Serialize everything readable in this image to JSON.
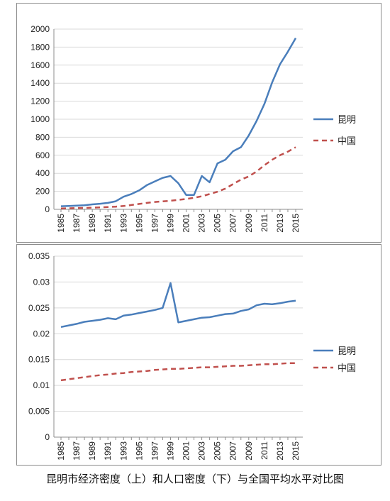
{
  "chart_data": [
    {
      "type": "line",
      "x": [
        "1985",
        "1986",
        "1987",
        "1988",
        "1989",
        "1990",
        "1991",
        "1992",
        "1993",
        "1994",
        "1995",
        "1996",
        "1997",
        "1998",
        "1999",
        "2000",
        "2001",
        "2002",
        "2003",
        "2004",
        "2005",
        "2006",
        "2007",
        "2008",
        "2009",
        "2010",
        "2011",
        "2012",
        "2013",
        "2014",
        "2015"
      ],
      "x_tick_labels": [
        "1985",
        "1987",
        "1989",
        "1991",
        "1993",
        "1995",
        "1997",
        "1999",
        "2001",
        "2003",
        "2005",
        "2007",
        "2009",
        "2011",
        "2013",
        "2015"
      ],
      "ylim": [
        0,
        2000
      ],
      "y_tick_labels": [
        "0",
        "200",
        "400",
        "600",
        "800",
        "1000",
        "1200",
        "1400",
        "1600",
        "1800",
        "2000"
      ],
      "grid": true,
      "legend_position": "right",
      "series": [
        {
          "name": "昆明",
          "color": "#4a7ebb",
          "style": "solid",
          "values": [
            35,
            38,
            42,
            45,
            55,
            62,
            72,
            90,
            140,
            170,
            210,
            270,
            310,
            350,
            370,
            290,
            160,
            160,
            370,
            300,
            510,
            550,
            645,
            690,
            820,
            980,
            1170,
            1410,
            1610,
            1750,
            1900
          ]
        },
        {
          "name": "中国",
          "color": "#c0504d",
          "style": "dashed",
          "values": [
            10,
            12,
            14,
            16,
            19,
            22,
            26,
            30,
            37,
            48,
            60,
            72,
            82,
            88,
            95,
            105,
            115,
            128,
            145,
            170,
            195,
            230,
            280,
            330,
            365,
            420,
            490,
            550,
            600,
            640,
            690
          ]
        }
      ]
    },
    {
      "type": "line",
      "x": [
        "1985",
        "1986",
        "1987",
        "1988",
        "1989",
        "1990",
        "1991",
        "1992",
        "1993",
        "1994",
        "1995",
        "1996",
        "1997",
        "1998",
        "1999",
        "2000",
        "2001",
        "2002",
        "2003",
        "2004",
        "2005",
        "2006",
        "2007",
        "2008",
        "2009",
        "2010",
        "2011",
        "2012",
        "2013",
        "2014",
        "2015"
      ],
      "x_tick_labels": [
        "1985",
        "1987",
        "1989",
        "1991",
        "1993",
        "1995",
        "1997",
        "1999",
        "2001",
        "2003",
        "2005",
        "2007",
        "2009",
        "2011",
        "2013",
        "2015"
      ],
      "ylim": [
        0,
        0.035
      ],
      "y_tick_labels": [
        "0",
        "0.005",
        "0.01",
        "0.015",
        "0.02",
        "0.025",
        "0.03",
        "0.035"
      ],
      "grid": true,
      "legend_position": "right",
      "series": [
        {
          "name": "昆明",
          "color": "#4a7ebb",
          "style": "solid",
          "values": [
            0.0213,
            0.0216,
            0.0219,
            0.0223,
            0.0225,
            0.0227,
            0.023,
            0.0228,
            0.0235,
            0.0237,
            0.024,
            0.0243,
            0.0246,
            0.025,
            0.0298,
            0.0222,
            0.0225,
            0.0228,
            0.0231,
            0.0232,
            0.0235,
            0.0238,
            0.0239,
            0.0244,
            0.0247,
            0.0255,
            0.0258,
            0.0257,
            0.0259,
            0.0262,
            0.0264
          ]
        },
        {
          "name": "中国",
          "color": "#c0504d",
          "style": "dashed",
          "values": [
            0.011,
            0.0112,
            0.0114,
            0.0116,
            0.0118,
            0.012,
            0.0121,
            0.0123,
            0.0124,
            0.0126,
            0.0127,
            0.0128,
            0.013,
            0.0131,
            0.0132,
            0.0132,
            0.0133,
            0.0134,
            0.0135,
            0.0135,
            0.0136,
            0.0137,
            0.0138,
            0.0138,
            0.0139,
            0.014,
            0.0141,
            0.0141,
            0.0142,
            0.0143,
            0.0143
          ]
        }
      ]
    }
  ],
  "caption": "昆明市经济密度（上）和人口密度（下）与全国平均水平对比图"
}
